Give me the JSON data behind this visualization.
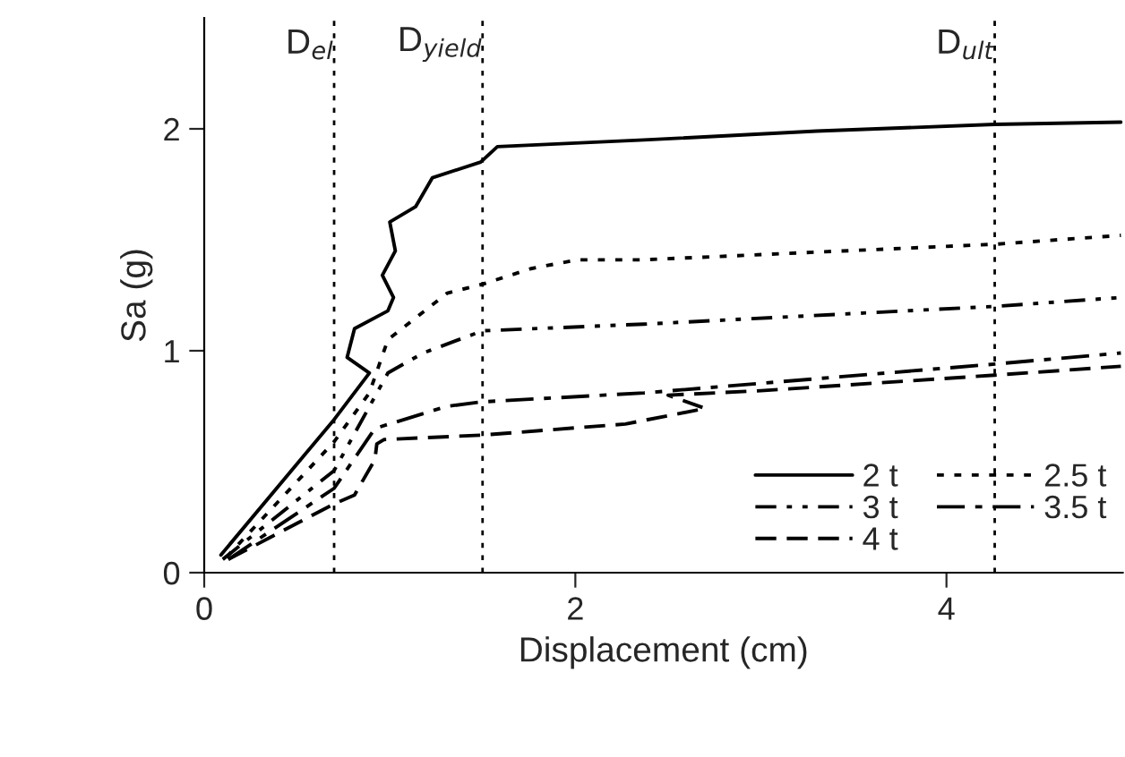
{
  "chart_data": {
    "type": "line",
    "xlabel": "Displacement (cm)",
    "ylabel": "Sa (g)",
    "xlim": [
      0,
      4.95
    ],
    "ylim": [
      0,
      2.5
    ],
    "xticks": [
      0,
      2,
      4
    ],
    "yticks": [
      0,
      1,
      2
    ],
    "grid": false,
    "legend": "bottom right",
    "marker": "none",
    "series": [
      {
        "name": "2 t",
        "color": "#000000",
        "line_style": "solid",
        "x": [
          0.09,
          0.7,
          0.89,
          0.77,
          0.81,
          0.99,
          1.02,
          0.96,
          1.03,
          1.0,
          1.14,
          1.23,
          1.49,
          1.58,
          2.37,
          3.3,
          4.26,
          4.94
        ],
        "values": [
          0.08,
          0.69,
          0.9,
          0.97,
          1.1,
          1.18,
          1.24,
          1.34,
          1.45,
          1.58,
          1.65,
          1.78,
          1.85,
          1.92,
          1.95,
          1.99,
          2.02,
          2.03
        ]
      },
      {
        "name": "2.5 t",
        "color": "#000000",
        "line_style": "dotted",
        "x": [
          0.12,
          0.7,
          0.89,
          0.99,
          1.31,
          1.5,
          1.76,
          2.01,
          2.37,
          4.26,
          4.94
        ],
        "values": [
          0.07,
          0.59,
          0.81,
          1.05,
          1.26,
          1.3,
          1.37,
          1.41,
          1.41,
          1.48,
          1.52
        ]
      },
      {
        "name": "3 t",
        "color": "#000000",
        "line_style": "dashdotdot",
        "x": [
          0.1,
          0.7,
          0.99,
          1.18,
          1.5,
          2.37,
          4.26,
          4.94
        ],
        "values": [
          0.06,
          0.46,
          0.9,
          0.99,
          1.09,
          1.12,
          1.2,
          1.24
        ]
      },
      {
        "name": "3.5 t",
        "color": "#000000",
        "line_style": "dashdot",
        "x": [
          0.13,
          0.7,
          0.92,
          1.31,
          1.5,
          2.37,
          4.26,
          4.94
        ],
        "values": [
          0.06,
          0.38,
          0.65,
          0.75,
          0.77,
          0.81,
          0.94,
          0.99
        ]
      },
      {
        "name": "4 t",
        "color": "#000000",
        "line_style": "dashed",
        "x": [
          0.13,
          0.7,
          0.81,
          0.92,
          0.93,
          0.97,
          1.5,
          2.27,
          2.7,
          2.5,
          3.0,
          4.26,
          4.94
        ],
        "values": [
          0.06,
          0.31,
          0.35,
          0.51,
          0.58,
          0.6,
          0.62,
          0.67,
          0.74,
          0.8,
          0.82,
          0.89,
          0.93
        ]
      }
    ],
    "ref_lines": [
      {
        "axis": "x",
        "value": 0.7,
        "label": "D$_{el}$",
        "line_style": "dotted",
        "color": "#000000"
      },
      {
        "axis": "x",
        "value": 1.5,
        "label": "D$_{yield}$",
        "line_style": "dotted",
        "color": "#000000"
      },
      {
        "axis": "x",
        "value": 4.26,
        "label": "D$_{ult}$",
        "line_style": "dotted",
        "color": "#000000"
      }
    ]
  }
}
